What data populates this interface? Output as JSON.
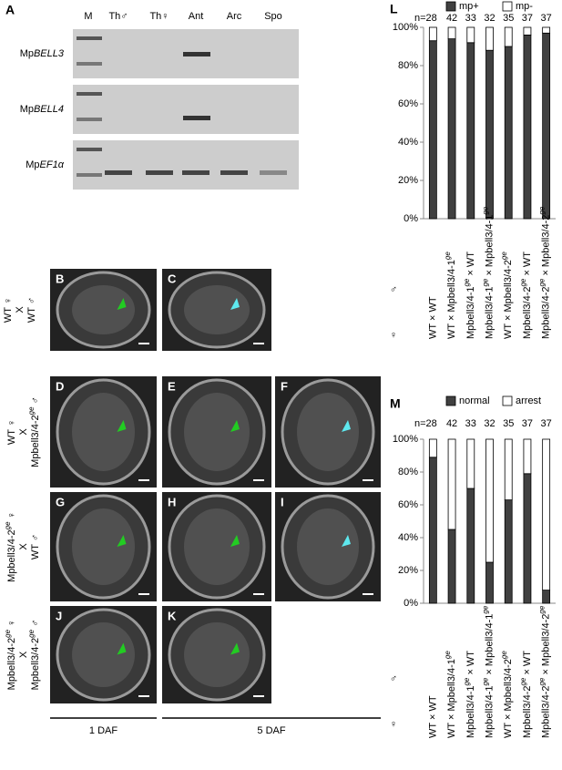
{
  "panel_a": {
    "label": "A",
    "lanes": [
      "M",
      "Th♂",
      "Th♀",
      "Ant",
      "Arc",
      "Spo"
    ],
    "genes": [
      "MpBELL3",
      "MpBELL4",
      "MpEF1α"
    ]
  },
  "micrographs": {
    "rows": [
      {
        "label_lines": [
          "WT ♀",
          "X",
          "WT ♂"
        ],
        "panels": [
          "B",
          "C"
        ]
      },
      {
        "label_lines": [
          "WT ♀",
          "X",
          "Mpbell3/4-2ge ♂"
        ],
        "panels": [
          "D",
          "E",
          "F"
        ]
      },
      {
        "label_lines": [
          "Mpbell3/4-2ge ♀",
          "X",
          "WT ♂"
        ],
        "panels": [
          "G",
          "H",
          "I"
        ]
      },
      {
        "label_lines": [
          "Mpbell3/4-2ge ♀",
          "X",
          "Mpbell3/4-2ge ♂"
        ],
        "panels": [
          "J",
          "K"
        ]
      }
    ],
    "time_labels": [
      "1 DAF",
      "5 DAF"
    ]
  },
  "chart_data": [
    {
      "type": "bar",
      "label": "L",
      "stacked": true,
      "legend_position": "top",
      "n_labels": [
        "n=28",
        "42",
        "33",
        "32",
        "35",
        "37",
        "37"
      ],
      "categories": [
        "WT × WT",
        "WT × Mpbell3/4-1ge",
        "Mpbell3/4-1ge × WT",
        "Mpbell3/4-1ge × Mpbell3/4-1ge",
        "WT × Mpbell3/4-2ge",
        "Mpbell3/4-2ge × WT",
        "Mpbell3/4-2ge × Mpbell3/4-2ge"
      ],
      "row_labels": [
        "♂",
        "♀"
      ],
      "series": [
        {
          "name": "mp+",
          "color": "#404040",
          "values": [
            93,
            94,
            92,
            88,
            90,
            96,
            97
          ]
        },
        {
          "name": "mp-",
          "color": "#ffffff",
          "values": [
            7,
            6,
            8,
            12,
            10,
            4,
            3
          ]
        }
      ],
      "ylim": [
        0,
        100
      ],
      "yticks": [
        {
          "value": 0,
          "label": "0%"
        },
        {
          "value": 20,
          "label": "20%"
        },
        {
          "value": 40,
          "label": "40%"
        },
        {
          "value": 60,
          "label": "60%"
        },
        {
          "value": 80,
          "label": "80%"
        },
        {
          "value": 100,
          "label": "100%"
        }
      ]
    },
    {
      "type": "bar",
      "label": "M",
      "stacked": true,
      "legend_position": "top",
      "n_labels": [
        "n=28",
        "42",
        "33",
        "32",
        "35",
        "37",
        "37"
      ],
      "categories": [
        "WT × WT",
        "WT × Mpbell3/4-1ge",
        "Mpbell3/4-1ge × WT",
        "Mpbell3/4-1ge × Mpbell3/4-1ge",
        "WT × Mpbell3/4-2ge",
        "Mpbell3/4-2ge × WT",
        "Mpbell3/4-2ge × Mpbell3/4-2ge"
      ],
      "row_labels": [
        "♂",
        "♀"
      ],
      "series": [
        {
          "name": "normal",
          "color": "#404040",
          "values": [
            89,
            45,
            70,
            25,
            63,
            79,
            8
          ]
        },
        {
          "name": "arrest",
          "color": "#ffffff",
          "values": [
            11,
            55,
            30,
            75,
            37,
            21,
            92
          ]
        }
      ],
      "ylim": [
        0,
        100
      ],
      "yticks": [
        {
          "value": 0,
          "label": "0%"
        },
        {
          "value": 20,
          "label": "20%"
        },
        {
          "value": 40,
          "label": "40%"
        },
        {
          "value": 60,
          "label": "60%"
        },
        {
          "value": 80,
          "label": "80%"
        },
        {
          "value": 100,
          "label": "100%"
        }
      ]
    }
  ]
}
